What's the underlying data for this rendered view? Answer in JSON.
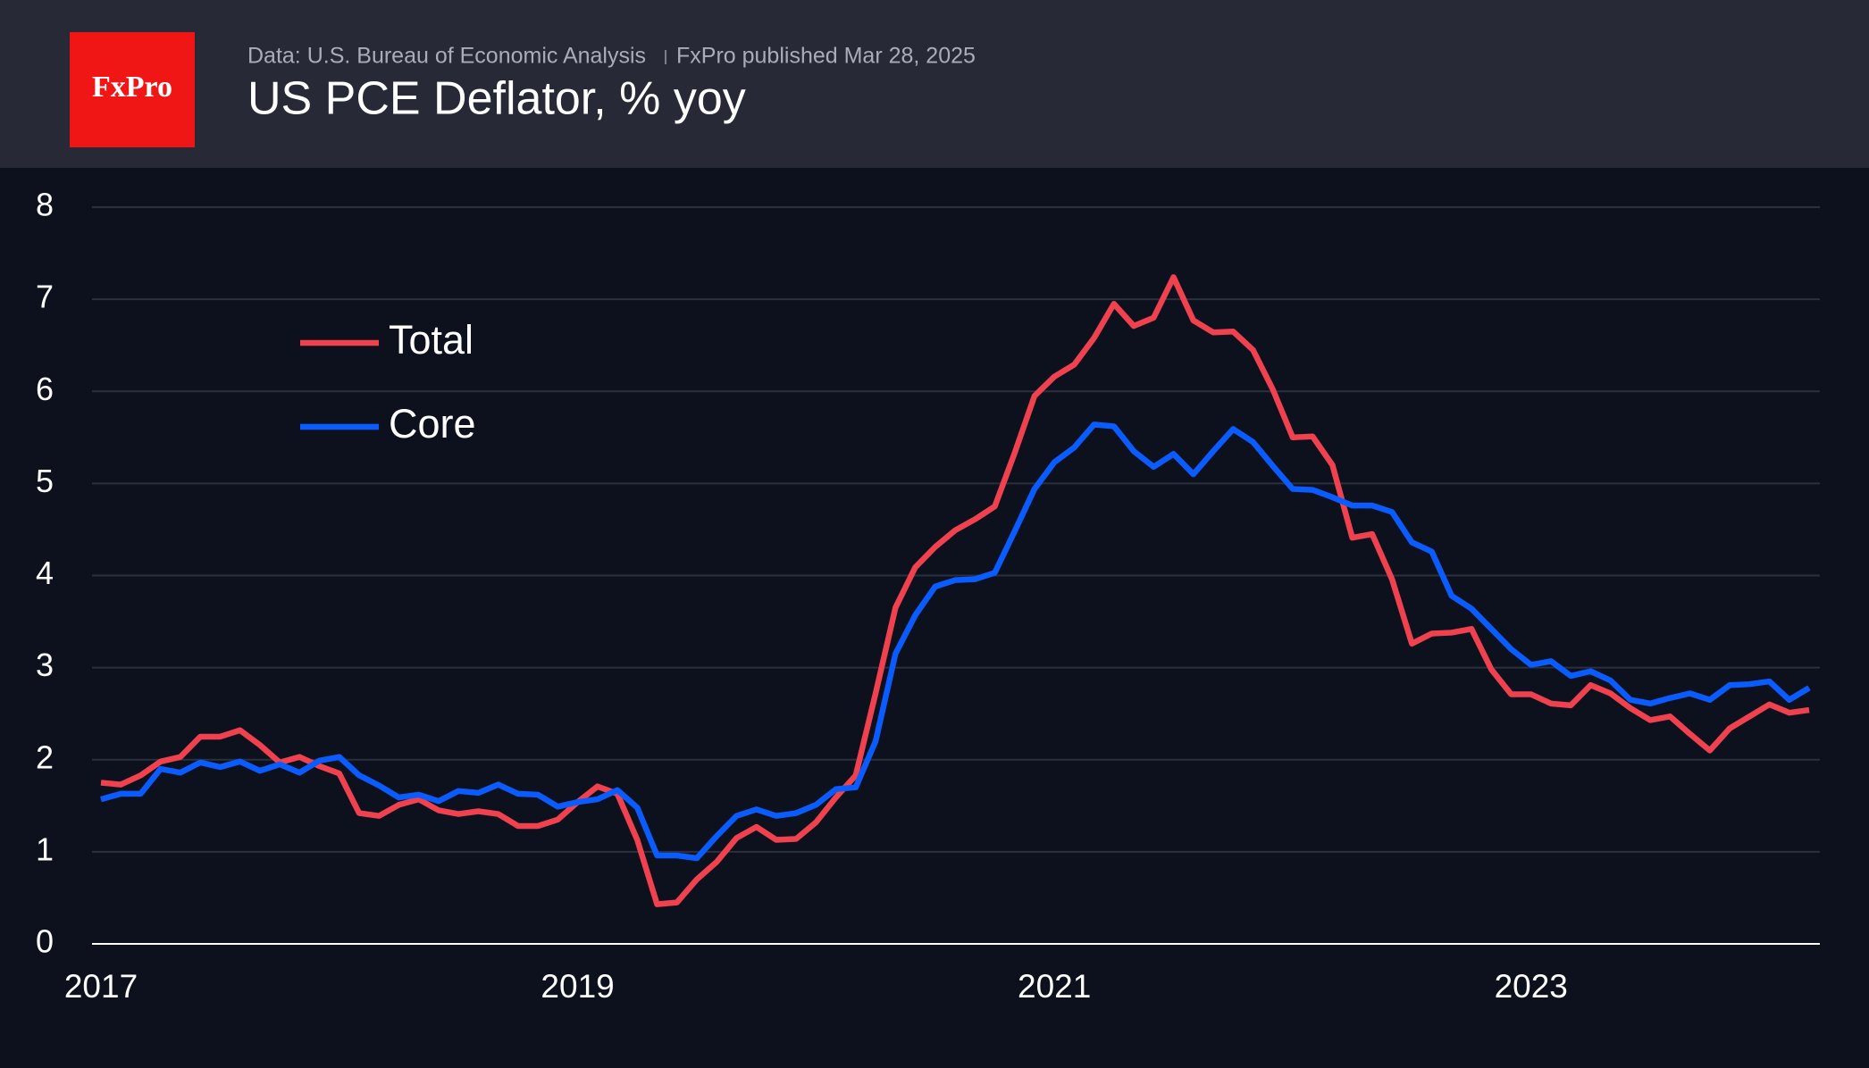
{
  "chart_data": {
    "type": "line",
    "source": "Data: U.S. Bureau of Economic Analysis",
    "published": "FxPro published Mar 28, 2025",
    "title": "US PCE Deflator, % yoy",
    "logo": "FxPro",
    "categories": [
      "2017",
      null,
      null,
      null,
      null,
      null,
      null,
      null,
      null,
      null,
      null,
      null,
      null,
      null,
      null,
      null,
      null,
      null,
      null,
      null,
      null,
      null,
      null,
      null,
      "2019",
      null,
      null,
      null,
      null,
      null,
      null,
      null,
      null,
      null,
      null,
      null,
      null,
      null,
      null,
      null,
      null,
      null,
      null,
      null,
      null,
      null,
      null,
      null,
      "2021",
      null,
      null,
      null,
      null,
      null,
      null,
      null,
      null,
      null,
      null,
      null,
      null,
      null,
      null,
      null,
      null,
      null,
      null,
      null,
      null,
      null,
      null,
      null,
      "2023",
      null,
      null,
      null,
      null,
      null,
      null,
      null,
      null,
      null,
      null,
      null,
      null,
      null,
      null
    ],
    "series": [
      {
        "name": "Total",
        "color": "#f0414f",
        "values": [
          1.75,
          1.73,
          1.83,
          1.98,
          2.03,
          2.25,
          2.25,
          2.32,
          2.16,
          1.97,
          2.03,
          1.93,
          1.85,
          1.42,
          1.39,
          1.51,
          1.57,
          1.45,
          1.41,
          1.44,
          1.41,
          1.28,
          1.28,
          1.35,
          1.54,
          1.71,
          1.63,
          1.13,
          0.43,
          0.45,
          0.7,
          0.89,
          1.15,
          1.27,
          1.13,
          1.14,
          1.32,
          1.59,
          1.83,
          2.72,
          3.65,
          4.09,
          4.31,
          4.49,
          4.61,
          4.75,
          5.33,
          5.95,
          6.16,
          6.29,
          6.58,
          6.95,
          6.71,
          6.8,
          7.24,
          6.77,
          6.64,
          6.65,
          6.45,
          6.02,
          5.5,
          5.51,
          5.2,
          4.41,
          4.45,
          3.96,
          3.26,
          3.37,
          3.38,
          3.42,
          2.98,
          2.71,
          2.71,
          2.61,
          2.59,
          2.81,
          2.72,
          2.56,
          2.43,
          2.47,
          2.28,
          2.1,
          2.34,
          2.47,
          2.6,
          2.51,
          2.54
        ]
      },
      {
        "name": "Core",
        "color": "#0a5cff",
        "values": [
          1.57,
          1.63,
          1.63,
          1.9,
          1.86,
          1.97,
          1.92,
          1.98,
          1.88,
          1.95,
          1.86,
          1.99,
          2.03,
          1.83,
          1.72,
          1.59,
          1.62,
          1.55,
          1.66,
          1.64,
          1.73,
          1.63,
          1.62,
          1.49,
          1.54,
          1.57,
          1.67,
          1.48,
          0.96,
          0.96,
          0.93,
          1.17,
          1.39,
          1.46,
          1.39,
          1.42,
          1.51,
          1.68,
          1.7,
          2.2,
          3.15,
          3.57,
          3.88,
          3.95,
          3.96,
          4.03,
          4.48,
          4.94,
          5.23,
          5.39,
          5.64,
          5.62,
          5.35,
          5.18,
          5.32,
          5.1,
          5.35,
          5.59,
          5.45,
          5.19,
          4.94,
          4.93,
          4.85,
          4.76,
          4.76,
          4.69,
          4.36,
          4.26,
          3.78,
          3.64,
          3.42,
          3.2,
          3.03,
          3.07,
          2.91,
          2.96,
          2.86,
          2.65,
          2.61,
          2.67,
          2.72,
          2.65,
          2.81,
          2.82,
          2.85,
          2.65,
          2.78
        ]
      }
    ],
    "ylim": [
      0,
      8
    ],
    "yticks": [
      0,
      1,
      2,
      3,
      4,
      5,
      6,
      7,
      8
    ],
    "grid": true
  }
}
